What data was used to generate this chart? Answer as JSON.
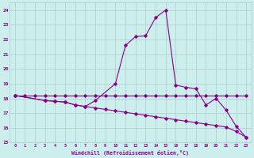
{
  "xlabel": "Windchill (Refroidissement éolien,°C)",
  "background_color": "#cceeed",
  "grid_color": "#aacccc",
  "line_color": "#880088",
  "xlim": [
    -0.5,
    23.5
  ],
  "ylim": [
    15,
    24.5
  ],
  "yticks": [
    15,
    16,
    17,
    18,
    19,
    20,
    21,
    22,
    23,
    24
  ],
  "xticks": [
    0,
    1,
    2,
    3,
    4,
    5,
    6,
    7,
    8,
    9,
    10,
    11,
    12,
    13,
    14,
    15,
    16,
    17,
    18,
    19,
    20,
    21,
    22,
    23
  ],
  "line1_x": [
    0,
    1,
    2,
    3,
    4,
    5,
    6,
    7,
    8,
    9,
    10,
    11,
    12,
    13,
    14,
    15,
    16,
    17,
    18,
    19,
    20,
    21,
    22,
    23
  ],
  "line1_y": [
    18.2,
    18.2,
    18.2,
    18.2,
    18.2,
    18.2,
    18.2,
    18.2,
    18.2,
    18.2,
    18.2,
    18.2,
    18.2,
    18.2,
    18.2,
    18.2,
    18.2,
    18.2,
    18.2,
    18.2,
    18.2,
    18.2,
    18.2,
    18.2
  ],
  "line2_x": [
    0,
    3,
    4,
    5,
    6,
    7,
    8,
    10,
    11,
    12,
    13,
    14,
    15,
    16,
    17,
    18,
    19,
    20,
    21,
    22,
    23
  ],
  "line2_y": [
    18.2,
    17.85,
    17.8,
    17.75,
    17.55,
    17.45,
    17.85,
    19.0,
    21.6,
    22.2,
    22.25,
    23.5,
    24.0,
    18.9,
    18.75,
    18.65,
    17.55,
    18.0,
    17.2,
    16.1,
    15.35
  ],
  "line3_x": [
    0,
    3,
    4,
    5,
    6,
    7,
    8,
    9,
    10,
    11,
    12,
    13,
    14,
    15,
    16,
    17,
    18,
    19,
    20,
    21,
    22,
    23
  ],
  "line3_y": [
    18.2,
    17.85,
    17.8,
    17.75,
    17.55,
    17.45,
    17.35,
    17.25,
    17.15,
    17.05,
    16.95,
    16.85,
    16.75,
    16.65,
    16.55,
    16.45,
    16.35,
    16.25,
    16.15,
    16.05,
    15.75,
    15.35
  ]
}
